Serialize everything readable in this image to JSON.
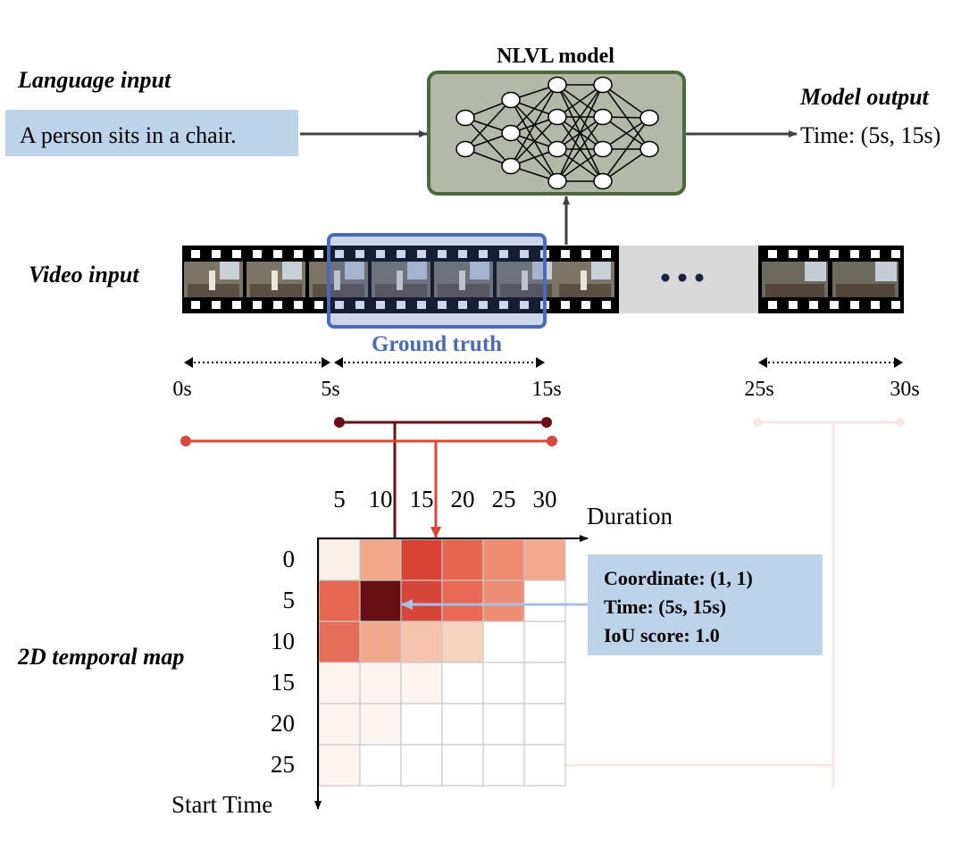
{
  "labels": {
    "language_input": "Language input",
    "video_input": "Video input",
    "model_output": "Model output",
    "temporal_map": "2D temporal map",
    "nlvl_model": "NLVL model",
    "ground_truth": "Ground truth"
  },
  "query_text": "A person sits in a chair.",
  "output_text": "Time: (5s, 15s)",
  "timeline": {
    "ticks": [
      {
        "label": "0s",
        "seconds": 0
      },
      {
        "label": "5s",
        "seconds": 5
      },
      {
        "label": "15s",
        "seconds": 15
      },
      {
        "label": "25s",
        "seconds": 25
      },
      {
        "label": "30s",
        "seconds": 30
      }
    ]
  },
  "map": {
    "duration_label": "Duration",
    "start_label": "Start Time",
    "durations": [
      "5",
      "10",
      "15",
      "20",
      "25",
      "30"
    ],
    "starts": [
      "0",
      "5",
      "10",
      "15",
      "20",
      "25"
    ],
    "cell_colors": [
      [
        "#fbefea",
        "#f0a78a",
        "#d84334",
        "#e6674f",
        "#ee8d72",
        "#f2a98f"
      ],
      [
        "#e76851",
        "#670f12",
        "#d6473a",
        "#e96a54",
        "#ee8f75",
        "#ffffff"
      ],
      [
        "#e66e58",
        "#f1a98d",
        "#f5c3ae",
        "#f8d2c1",
        "#ffffff",
        "#ffffff"
      ],
      [
        "#fdf3ef",
        "#fdf3ef",
        "#fdf3ef",
        "#ffffff",
        "#ffffff",
        "#ffffff"
      ],
      [
        "#fdf3ef",
        "#fdf3ef",
        "#ffffff",
        "#ffffff",
        "#ffffff",
        "#ffffff"
      ],
      [
        "#fdf3ef",
        "#ffffff",
        "#ffffff",
        "#ffffff",
        "#ffffff",
        "#ffffff"
      ]
    ]
  },
  "info_box": {
    "coordinate": "Coordinate: (1, 1)",
    "time": "Time: (5s, 15s)",
    "iou": "IoU score: 1.0"
  },
  "colors": {
    "query_bg": "#bcd3ea",
    "model_fill": "#b3b9a8",
    "model_border": "#4a6a3a",
    "ground_truth": "#4a6bb8",
    "info_bg": "#bcd3ea",
    "dark_red": "#6a0f14",
    "red": "#d9473b"
  }
}
